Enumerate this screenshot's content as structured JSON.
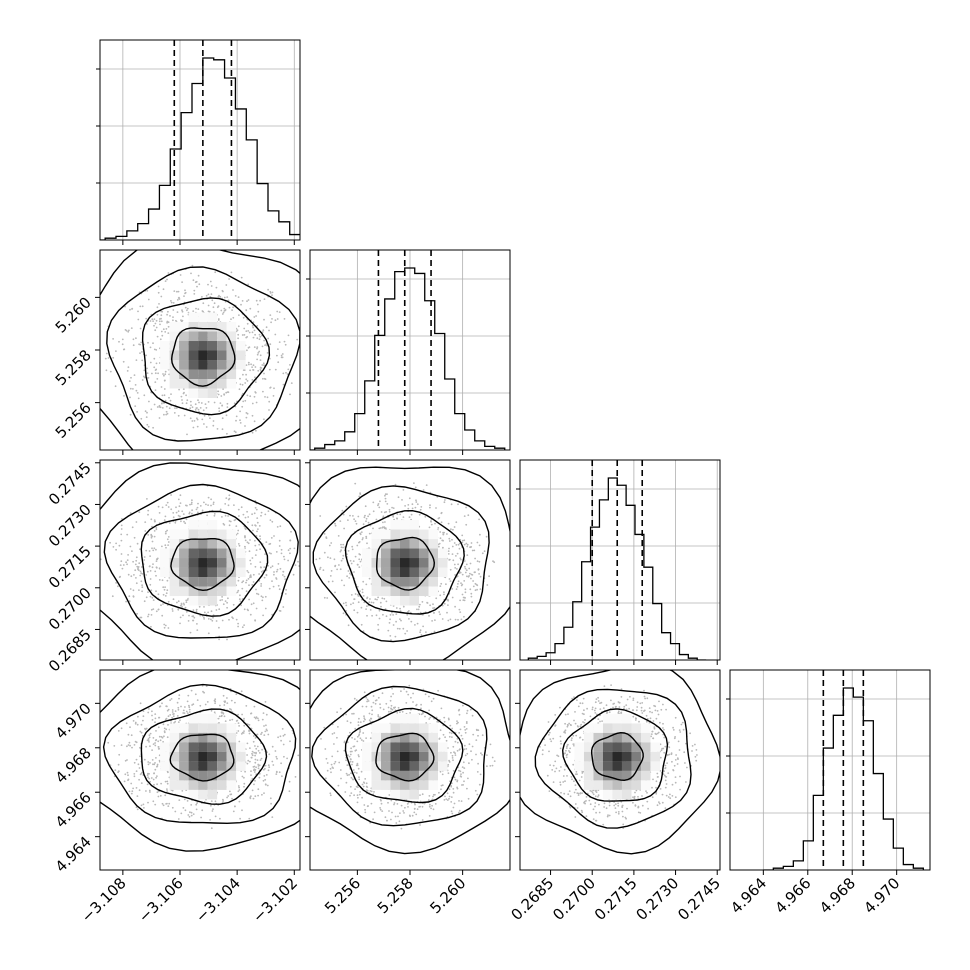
{
  "chart_data": {
    "type": "corner",
    "grid": true,
    "parameters": [
      {
        "range": [
          -3.1088,
          -3.1018
        ],
        "ticks": [
          -3.108,
          -3.106,
          -3.104,
          -3.102
        ],
        "tick_labels": [
          "−3.108",
          "−3.106",
          "−3.104",
          "−3.102"
        ],
        "mean": -3.1052,
        "sd": 0.00095,
        "quantiles": [
          -3.1062,
          -3.1052,
          -3.1042
        ]
      },
      {
        "range": [
          5.2542,
          5.2618
        ],
        "ticks": [
          5.256,
          5.258,
          5.26
        ],
        "tick_labels": [
          "5.256",
          "5.258",
          "5.260"
        ],
        "mean": 5.2578,
        "sd": 0.00095,
        "quantiles": [
          5.2568,
          5.2578,
          5.2588
        ]
      },
      {
        "range": [
          0.2674,
          0.2746
        ],
        "ticks": [
          0.2685,
          0.27,
          0.2715,
          0.273,
          0.2745
        ],
        "tick_labels": [
          "0.2685",
          "0.2700",
          "0.2715",
          "0.2730",
          "0.2745"
        ],
        "mean": 0.2709,
        "sd": 0.0008,
        "quantiles": [
          0.27,
          0.2709,
          0.2718
        ]
      },
      {
        "range": [
          4.9625,
          4.9715
        ],
        "ticks": [
          4.964,
          4.966,
          4.968,
          4.97
        ],
        "tick_labels": [
          "4.964",
          "4.966",
          "4.968",
          "4.970"
        ],
        "mean": 4.9676,
        "sd": 0.0009,
        "quantiles": [
          4.9667,
          4.9676,
          4.9685
        ]
      }
    ],
    "histograms": [
      {
        "parameter": 0,
        "counts": [
          0,
          1,
          2,
          5,
          9,
          17,
          30,
          50,
          70,
          86,
          100,
          99,
          89,
          72,
          55,
          31,
          16,
          10,
          3,
          1
        ]
      },
      {
        "parameter": 1,
        "counts": [
          0,
          1,
          3,
          5,
          10,
          20,
          38,
          63,
          83,
          98,
          100,
          97,
          82,
          64,
          39,
          20,
          11,
          5,
          2,
          1
        ]
      },
      {
        "parameter": 2,
        "counts": [
          1,
          2,
          4,
          9,
          18,
          32,
          54,
          73,
          88,
          100,
          96,
          85,
          69,
          51,
          31,
          15,
          9,
          3,
          1,
          0
        ]
      },
      {
        "parameter": 3,
        "counts": [
          0,
          1,
          2,
          5,
          16,
          41,
          67,
          85,
          100,
          95,
          82,
          53,
          28,
          12,
          3,
          1
        ]
      }
    ],
    "scatter_panels": [
      {
        "x": 0,
        "y": 1
      },
      {
        "x": 0,
        "y": 2
      },
      {
        "x": 1,
        "y": 2
      },
      {
        "x": 0,
        "y": 3
      },
      {
        "x": 1,
        "y": 3
      },
      {
        "x": 2,
        "y": 3
      }
    ],
    "contour_sigma_levels": [
      0.5,
      1.0,
      1.5,
      2.0
    ],
    "colors": {
      "line": "#000000",
      "grid": "#b0b0b0",
      "point": "#b8b8b8"
    }
  }
}
